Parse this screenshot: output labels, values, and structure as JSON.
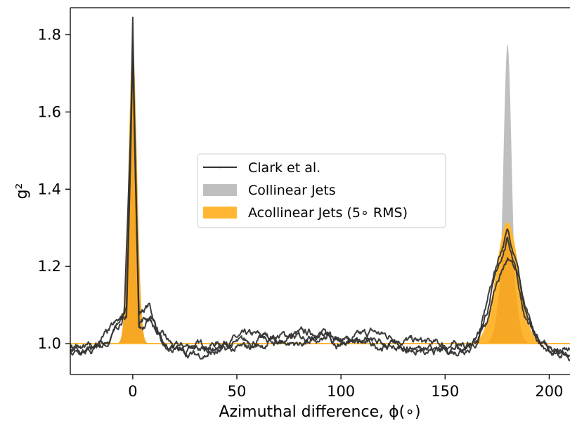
{
  "chart_data": {
    "type": "line",
    "title": "",
    "xlabel": "Azimuthal difference, ϕ(∘)",
    "ylabel": "g²",
    "xlim": [
      -30,
      210
    ],
    "ylim": [
      0.92,
      1.87
    ],
    "xticks": [
      0,
      50,
      100,
      150,
      200
    ],
    "yticks": [
      1.0,
      1.2,
      1.4,
      1.6,
      1.8
    ],
    "xtick_labels": [
      "0",
      "50",
      "100",
      "150",
      "200"
    ],
    "ytick_labels": [
      "1.0",
      "1.2",
      "1.4",
      "1.6",
      "1.8"
    ],
    "grid": false,
    "legend": {
      "placement": "center",
      "entries": [
        {
          "label": "Clark et al.",
          "style": "line-marker",
          "color": "#333333"
        },
        {
          "label": "Collinear Jets",
          "style": "fill",
          "color": "#bfbfbf"
        },
        {
          "label": "Acollinear Jets (5∘ RMS)",
          "style": "fill",
          "color": "#ffb733"
        }
      ]
    },
    "series": [
      {
        "name": "Collinear Jets",
        "kind": "gaussian-area",
        "color": "#bfbfbf",
        "baseline": 1.0,
        "peaks": [
          {
            "center": 0,
            "height": 0.77,
            "sigma": 2.0
          },
          {
            "center": 180,
            "height": 0.775,
            "sigma": 2.0
          }
        ]
      },
      {
        "name": "Acollinear Jets (5∘ RMS)",
        "kind": "gaussian-area",
        "color": "#ffb733",
        "peak_fill_color": "#f5a623",
        "baseline": 1.0,
        "peaks": [
          {
            "center": 0,
            "height": 0.775,
            "sigma": 2.0
          },
          {
            "center": 180,
            "height": 0.315,
            "sigma": 5.4
          }
        ]
      },
      {
        "name": "Clark et al.",
        "kind": "noisy-line",
        "color": "#333333",
        "traces": [
          {
            "points": [
              [
                -30,
                0.985
              ],
              [
                -20,
                0.99
              ],
              [
                -12,
                1.0
              ],
              [
                -6,
                1.06
              ],
              [
                -3,
                1.1
              ],
              [
                -1,
                1.5
              ],
              [
                0,
                1.83
              ],
              [
                1,
                1.5
              ],
              [
                3,
                1.08
              ],
              [
                8,
                1.1
              ],
              [
                12,
                1.03
              ],
              [
                20,
                0.99
              ],
              [
                40,
                1.0
              ],
              [
                55,
                1.02
              ],
              [
                70,
                1.02
              ],
              [
                90,
                1.03
              ],
              [
                100,
                1.0
              ],
              [
                115,
                1.03
              ],
              [
                130,
                1.01
              ],
              [
                145,
                1.0
              ],
              [
                160,
                0.99
              ],
              [
                166,
                1.01
              ],
              [
                172,
                1.15
              ],
              [
                176,
                1.23
              ],
              [
                180,
                1.29
              ],
              [
                184,
                1.23
              ],
              [
                188,
                1.1
              ],
              [
                193,
                1.01
              ],
              [
                200,
                0.985
              ],
              [
                210,
                0.97
              ]
            ]
          },
          {
            "points": [
              [
                -30,
                0.995
              ],
              [
                -20,
                0.98
              ],
              [
                -10,
                1.02
              ],
              [
                -4,
                1.08
              ],
              [
                -1,
                1.55
              ],
              [
                0,
                1.78
              ],
              [
                1,
                1.55
              ],
              [
                3,
                1.06
              ],
              [
                8,
                1.07
              ],
              [
                14,
                1.0
              ],
              [
                25,
                0.98
              ],
              [
                40,
                0.99
              ],
              [
                60,
                1.01
              ],
              [
                80,
                1.0
              ],
              [
                95,
                1.02
              ],
              [
                110,
                1.0
              ],
              [
                125,
                0.99
              ],
              [
                140,
                0.98
              ],
              [
                155,
                0.98
              ],
              [
                165,
                1.0
              ],
              [
                171,
                1.1
              ],
              [
                176,
                1.21
              ],
              [
                180,
                1.27
              ],
              [
                184,
                1.2
              ],
              [
                188,
                1.07
              ],
              [
                195,
                1.0
              ],
              [
                205,
                0.98
              ],
              [
                210,
                0.98
              ]
            ]
          },
          {
            "points": [
              [
                -30,
                0.97
              ],
              [
                -20,
                0.98
              ],
              [
                -8,
                1.05
              ],
              [
                -3,
                1.07
              ],
              [
                -1,
                1.5
              ],
              [
                0,
                1.76
              ],
              [
                1,
                1.5
              ],
              [
                3,
                1.03
              ],
              [
                9,
                1.06
              ],
              [
                16,
                0.99
              ],
              [
                30,
                0.97
              ],
              [
                45,
                0.98
              ],
              [
                65,
                1.0
              ],
              [
                85,
                1.02
              ],
              [
                105,
                1.01
              ],
              [
                120,
                1.0
              ],
              [
                135,
                0.99
              ],
              [
                150,
                0.985
              ],
              [
                162,
                1.0
              ],
              [
                170,
                1.06
              ],
              [
                175,
                1.16
              ],
              [
                180,
                1.22
              ],
              [
                185,
                1.17
              ],
              [
                190,
                1.05
              ],
              [
                197,
                0.99
              ],
              [
                205,
                0.97
              ],
              [
                210,
                0.96
              ]
            ]
          }
        ]
      }
    ]
  }
}
